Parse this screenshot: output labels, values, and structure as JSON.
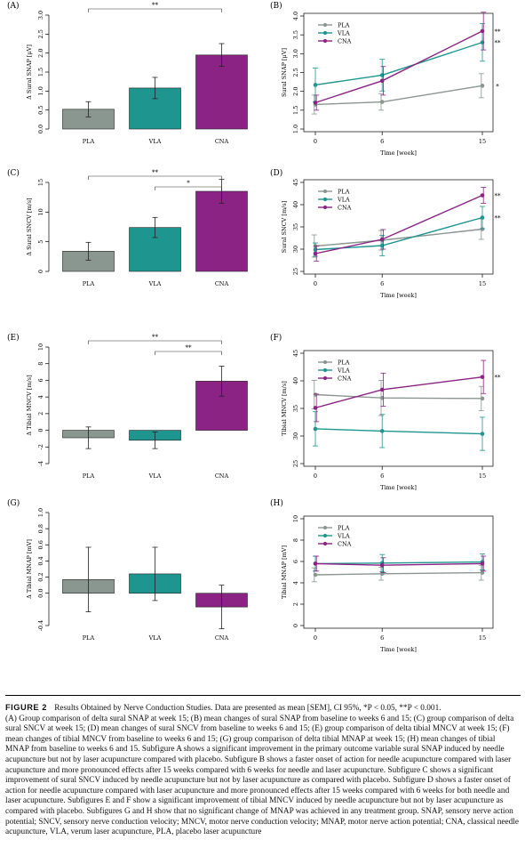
{
  "colors": {
    "PLA": "#8a9690",
    "VLA": "#1e958e",
    "CNA": "#8a2383"
  },
  "chart_data": [
    {
      "panel": "(A)",
      "type": "bar",
      "categories": [
        "PLA",
        "VLA",
        "CNA"
      ],
      "values": [
        0.52,
        1.08,
        1.95
      ],
      "errors": [
        0.2,
        0.28,
        0.3
      ],
      "ylabel": "Δ Sural SNAP [μV]",
      "ylim": [
        0,
        3.0
      ],
      "yticks": [
        "0.0",
        "0.5",
        "1.0",
        "1.5",
        "2.0",
        "2.5",
        "3.0"
      ],
      "significance": [
        {
          "from": "PLA",
          "to": "CNA",
          "label": "**"
        }
      ]
    },
    {
      "panel": "(B)",
      "type": "line",
      "x": [
        0,
        6,
        15
      ],
      "xticks": [
        "0",
        "6",
        "15"
      ],
      "xlabel": "Time [week]",
      "ylabel": "Sural SNAP [μV]",
      "ylim": [
        1.0,
        4.0
      ],
      "yticks": [
        "1.0",
        "1.5",
        "2.0",
        "2.5",
        "3.0",
        "3.5",
        "4.0"
      ],
      "legend_position": "top-left",
      "series": [
        {
          "name": "PLA",
          "values": [
            1.65,
            1.72,
            2.15
          ],
          "errors": [
            0.25,
            0.22,
            0.32
          ],
          "mark": "*"
        },
        {
          "name": "VLA",
          "values": [
            2.17,
            2.43,
            3.3
          ],
          "errors": [
            0.45,
            0.42,
            0.5
          ],
          "mark": "**"
        },
        {
          "name": "CNA",
          "values": [
            1.7,
            2.28,
            3.6
          ],
          "errors": [
            0.2,
            0.38,
            0.5
          ],
          "mark": "**"
        }
      ]
    },
    {
      "panel": "(C)",
      "type": "bar",
      "categories": [
        "PLA",
        "VLA",
        "CNA"
      ],
      "values": [
        3.4,
        7.4,
        13.5
      ],
      "errors": [
        1.5,
        1.7,
        2.0
      ],
      "ylabel": "Δ Sural SNCV [m/s]",
      "ylim": [
        0,
        15
      ],
      "yticks": [
        "0",
        "5",
        "10",
        "15"
      ],
      "significance": [
        {
          "from": "PLA",
          "to": "CNA",
          "label": "**"
        },
        {
          "from": "VLA",
          "to": "CNA",
          "label": "*"
        }
      ]
    },
    {
      "panel": "(D)",
      "type": "line",
      "x": [
        0,
        6,
        15
      ],
      "xticks": [
        "0",
        "6",
        "15"
      ],
      "xlabel": "Time [week]",
      "ylabel": "Sural SNCV [m/s]",
      "ylim": [
        25,
        45
      ],
      "yticks": [
        "25",
        "30",
        "35",
        "40",
        "45"
      ],
      "legend_position": "top-left",
      "series": [
        {
          "name": "PLA",
          "values": [
            30.7,
            32.0,
            34.5
          ],
          "errors": [
            2.5,
            2.2,
            2.3
          ],
          "mark": ""
        },
        {
          "name": "VLA",
          "values": [
            29.9,
            30.8,
            37.1
          ],
          "errors": [
            1.5,
            2.3,
            2.5
          ],
          "mark": "**"
        },
        {
          "name": "CNA",
          "values": [
            29.0,
            32.2,
            42.1
          ],
          "errors": [
            1.7,
            2.2,
            1.8
          ],
          "mark": "**"
        }
      ]
    },
    {
      "panel": "(E)",
      "type": "bar",
      "categories": [
        "PLA",
        "VLA",
        "CNA"
      ],
      "values": [
        -0.9,
        -1.2,
        5.9
      ],
      "errors": [
        1.3,
        1.0,
        1.8
      ],
      "ylabel": "Δ Tibial MNCV [m/s]",
      "ylim": [
        -4,
        10
      ],
      "yticks": [
        "-4",
        "-2",
        "0",
        "2",
        "4",
        "6",
        "8",
        "10"
      ],
      "significance": [
        {
          "from": "PLA",
          "to": "CNA",
          "label": "**"
        },
        {
          "from": "VLA",
          "to": "CNA",
          "label": "**"
        }
      ]
    },
    {
      "panel": "(F)",
      "type": "line",
      "x": [
        0,
        6,
        15
      ],
      "xticks": [
        "0",
        "6",
        "15"
      ],
      "xlabel": "Time [week]",
      "ylabel": "Tibial MNCV [m/s]",
      "ylim": [
        25,
        45
      ],
      "yticks": [
        "25",
        "30",
        "35",
        "40",
        "45"
      ],
      "legend_position": "top-left",
      "series": [
        {
          "name": "PLA",
          "values": [
            37.5,
            36.9,
            36.8
          ],
          "errors": [
            2.6,
            3.2,
            2.2
          ],
          "mark": ""
        },
        {
          "name": "VLA",
          "values": [
            31.3,
            30.9,
            30.4
          ],
          "errors": [
            3.1,
            3.0,
            3.0
          ],
          "mark": ""
        },
        {
          "name": "CNA",
          "values": [
            35.1,
            38.4,
            40.7
          ],
          "errors": [
            2.5,
            3.0,
            3.0
          ],
          "mark": "**"
        }
      ]
    },
    {
      "panel": "(G)",
      "type": "bar",
      "categories": [
        "PLA",
        "VLA",
        "CNA"
      ],
      "values": [
        0.17,
        0.24,
        -0.17
      ],
      "errors": [
        0.4,
        0.33,
        0.27
      ],
      "ylabel": "Δ Tibial MNAP [mV]",
      "ylim": [
        -0.4,
        1.0
      ],
      "yticks": [
        "-0.4",
        "0.0",
        "0.2",
        "0.4",
        "0.6",
        "0.8",
        "1.0"
      ],
      "significance": []
    },
    {
      "panel": "(H)",
      "type": "line",
      "x": [
        0,
        6,
        15
      ],
      "xticks": [
        "0",
        "6",
        "15"
      ],
      "xlabel": "Time [week]",
      "ylabel": "Tibial MNAP [mV]",
      "ylim": [
        0,
        10
      ],
      "yticks": [
        "0",
        "2",
        "4",
        "6",
        "8",
        "10"
      ],
      "legend_position": "top-left",
      "series": [
        {
          "name": "PLA",
          "values": [
            4.75,
            4.85,
            4.95
          ],
          "errors": [
            0.65,
            0.6,
            0.7
          ],
          "mark": ""
        },
        {
          "name": "VLA",
          "values": [
            5.8,
            5.85,
            5.95
          ],
          "errors": [
            0.7,
            0.8,
            0.75
          ],
          "mark": ""
        },
        {
          "name": "CNA",
          "values": [
            5.8,
            5.65,
            5.8
          ],
          "errors": [
            0.7,
            0.7,
            0.7
          ],
          "mark": ""
        }
      ]
    }
  ],
  "caption": {
    "label": "FIGURE 2",
    "title": "Results Obtained by Nerve Conduction Studies. Data are presented as mean [SEM], CI 95%, *P < 0.05, **P < 0.001.",
    "body": "(A) Group comparison of delta sural SNAP at week 15; (B) mean changes of sural SNAP from baseline to weeks 6 and 15; (C) group comparison of delta sural SNCV at week 15; (D) mean changes of sural SNCV from baseline to weeks 6 and 15; (E) group comparison of delta tibial MNCV at week 15; (F) mean changes of tibial MNCV from baseline to weeks 6 and 15; (G) group comparison of delta tibial MNAP at week 15; (H) mean changes of tibial MNAP from baseline to weeks 6 and 15. Subfigure A shows a significant improvement in the primary outcome variable sural SNAP induced by needle acupuncture but not by laser acupuncture compared with placebo. Subfigure B shows a faster onset of action for needle acupuncture compared with laser acupuncture and more pronounced effects after 15 weeks compared with 6 weeks for needle and laser acupuncture. Subfigure C shows a significant improvement of sural SNCV induced by needle acupuncture but not by laser acupuncture as compared with placebo. Subfigure D shows a faster onset of action for needle acupuncture compared with laser acupuncture and more pronounced effects after 15 weeks compared with 6 weeks for both needle and laser acupuncture. Subfigures E and F show a significant improvement of tibial MNCV induced by needle acupuncture but not by laser acupuncture as compared with placebo. Subfigures G and H show that no significant change of MNAP was achieved in any treatment group. SNAP, sensory nerve action potential; SNCV, sensory nerve conduction velocity; MNCV, motor nerve conduction velocity; MNAP, motor nerve action potential; CNA, classical needle acupuncture, VLA, verum laser acupuncture, PLA, placebo laser acupuncture"
  }
}
